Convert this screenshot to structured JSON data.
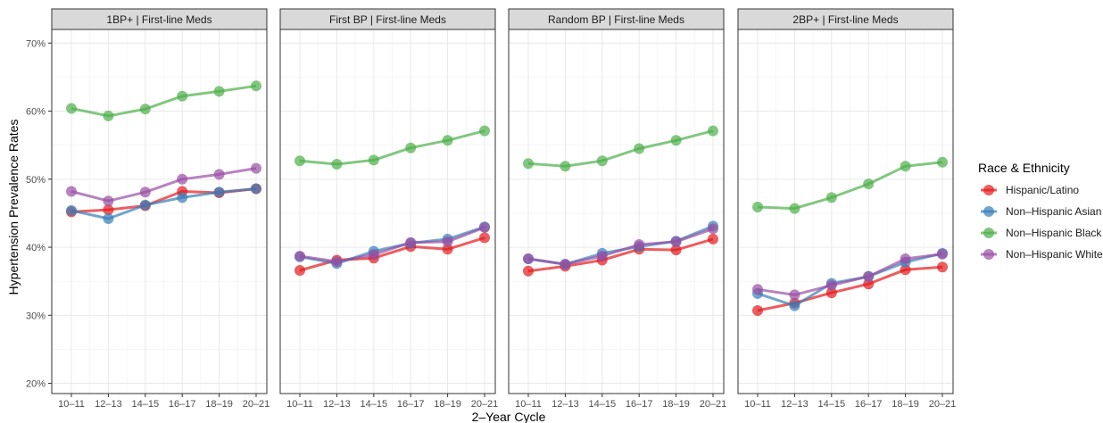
{
  "chart_data": {
    "type": "line",
    "facets": [
      "1BP+ | First-line Meds",
      "First BP | First-line Meds",
      "Random BP | First-line Meds",
      "2BP+ | First-line Meds"
    ],
    "categories": [
      "10–11",
      "12–13",
      "14–15",
      "16–17",
      "18–19",
      "20–21"
    ],
    "xlabel": "2–Year Cycle",
    "ylabel": "Hypertension Prevalence Rates",
    "ylim": [
      0.185,
      0.72
    ],
    "yticks": [
      0.2,
      0.3,
      0.4,
      0.5,
      0.6,
      0.7
    ],
    "ytick_labels": [
      "20%",
      "30%",
      "40%",
      "50%",
      "60%",
      "70%"
    ],
    "grid": true,
    "legend": {
      "title": "Race & Ethnicity",
      "placement": "right",
      "entries": [
        "Hispanic/Latino",
        "Non–Hispanic Asian",
        "Non–Hispanic Black",
        "Non–Hispanic White"
      ]
    },
    "colors": {
      "Hispanic/Latino": "#E41A1C",
      "Non–Hispanic Asian": "#377EB8",
      "Non–Hispanic Black": "#4DAF4A",
      "Non–Hispanic White": "#984EA3"
    },
    "panels": [
      {
        "series": [
          {
            "name": "Hispanic/Latino",
            "values": [
              0.452,
              0.455,
              0.461,
              0.482,
              0.48,
              0.486
            ]
          },
          {
            "name": "Non–Hispanic Asian",
            "values": [
              0.454,
              0.442,
              0.462,
              0.473,
              0.481,
              0.486
            ]
          },
          {
            "name": "Non–Hispanic Black",
            "values": [
              0.604,
              0.593,
              0.603,
              0.622,
              0.629,
              0.637
            ]
          },
          {
            "name": "Non–Hispanic White",
            "values": [
              0.482,
              0.468,
              0.481,
              0.5,
              0.507,
              0.516
            ]
          }
        ]
      },
      {
        "series": [
          {
            "name": "Hispanic/Latino",
            "values": [
              0.366,
              0.381,
              0.384,
              0.401,
              0.397,
              0.414
            ]
          },
          {
            "name": "Non–Hispanic Asian",
            "values": [
              0.386,
              0.376,
              0.394,
              0.406,
              0.412,
              0.43
            ]
          },
          {
            "name": "Non–Hispanic Black",
            "values": [
              0.527,
              0.522,
              0.528,
              0.546,
              0.557,
              0.571
            ]
          },
          {
            "name": "Non–Hispanic White",
            "values": [
              0.387,
              0.379,
              0.389,
              0.407,
              0.408,
              0.429
            ]
          }
        ]
      },
      {
        "series": [
          {
            "name": "Hispanic/Latino",
            "values": [
              0.365,
              0.372,
              0.381,
              0.397,
              0.396,
              0.412
            ]
          },
          {
            "name": "Non–Hispanic Asian",
            "values": [
              0.383,
              0.375,
              0.391,
              0.401,
              0.409,
              0.431
            ]
          },
          {
            "name": "Non–Hispanic Black",
            "values": [
              0.523,
              0.519,
              0.527,
              0.545,
              0.557,
              0.571
            ]
          },
          {
            "name": "Non–Hispanic White",
            "values": [
              0.383,
              0.375,
              0.387,
              0.404,
              0.408,
              0.427
            ]
          }
        ]
      },
      {
        "series": [
          {
            "name": "Hispanic/Latino",
            "values": [
              0.307,
              0.318,
              0.333,
              0.346,
              0.367,
              0.371
            ]
          },
          {
            "name": "Non–Hispanic Asian",
            "values": [
              0.332,
              0.314,
              0.347,
              0.357,
              0.378,
              0.391
            ]
          },
          {
            "name": "Non–Hispanic Black",
            "values": [
              0.459,
              0.457,
              0.473,
              0.493,
              0.519,
              0.525
            ]
          },
          {
            "name": "Non–Hispanic White",
            "values": [
              0.338,
              0.33,
              0.344,
              0.357,
              0.383,
              0.39
            ]
          }
        ]
      }
    ]
  }
}
